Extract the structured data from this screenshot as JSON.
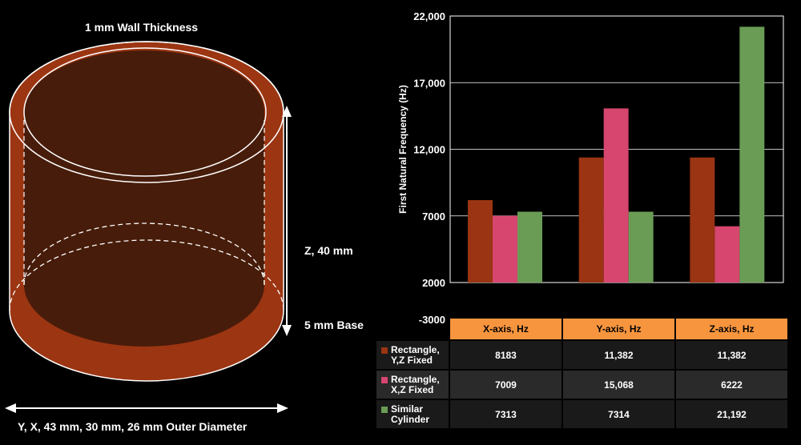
{
  "diagram": {
    "wall_label": "1 mm Wall Thickness",
    "height_label": "Z, 40 mm",
    "base_label": "5 mm Base",
    "diameter_label": "Y, X, 43 mm, 30 mm, 26 mm Outer Diameter"
  },
  "colors": {
    "rect_yz": "#9a3412",
    "rect_xz": "#d6466f",
    "cylinder": "#6a9c55",
    "header": "#f7953e",
    "cyl_body": "#471c0a",
    "cyl_rim": "#9b3512"
  },
  "chart_data": {
    "type": "bar",
    "ylabel": "First Natural Frequency (Hz)",
    "ylim": [
      -3000,
      22000
    ],
    "yticks": [
      2000,
      7000,
      12000,
      17000,
      22000
    ],
    "ytick_labels": [
      "2000",
      "7000",
      "12,000",
      "17,000",
      "22,000"
    ],
    "bottom_label": "-3000",
    "categories": [
      "X-axis, Hz",
      "Y-axis, Hz",
      "Z-axis, Hz"
    ],
    "series": [
      {
        "name": "Rectangle, Y,Z Fixed",
        "line1": "Rectangle,",
        "line2": "Y,Z Fixed",
        "values": [
          8183,
          11382,
          11382
        ],
        "display": [
          "8183",
          "11,382",
          "11,382"
        ]
      },
      {
        "name": "Rectangle, X,Z Fixed",
        "line1": "Rectangle,",
        "line2": "X,Z Fixed",
        "values": [
          7009,
          15068,
          6222
        ],
        "display": [
          "7009",
          "15,068",
          "6222"
        ]
      },
      {
        "name": "Similar Cylinder",
        "line1": "Similar",
        "line2": "Cylinder",
        "values": [
          7313,
          7314,
          21192
        ],
        "display": [
          "7313",
          "7314",
          "21,192"
        ]
      }
    ]
  }
}
